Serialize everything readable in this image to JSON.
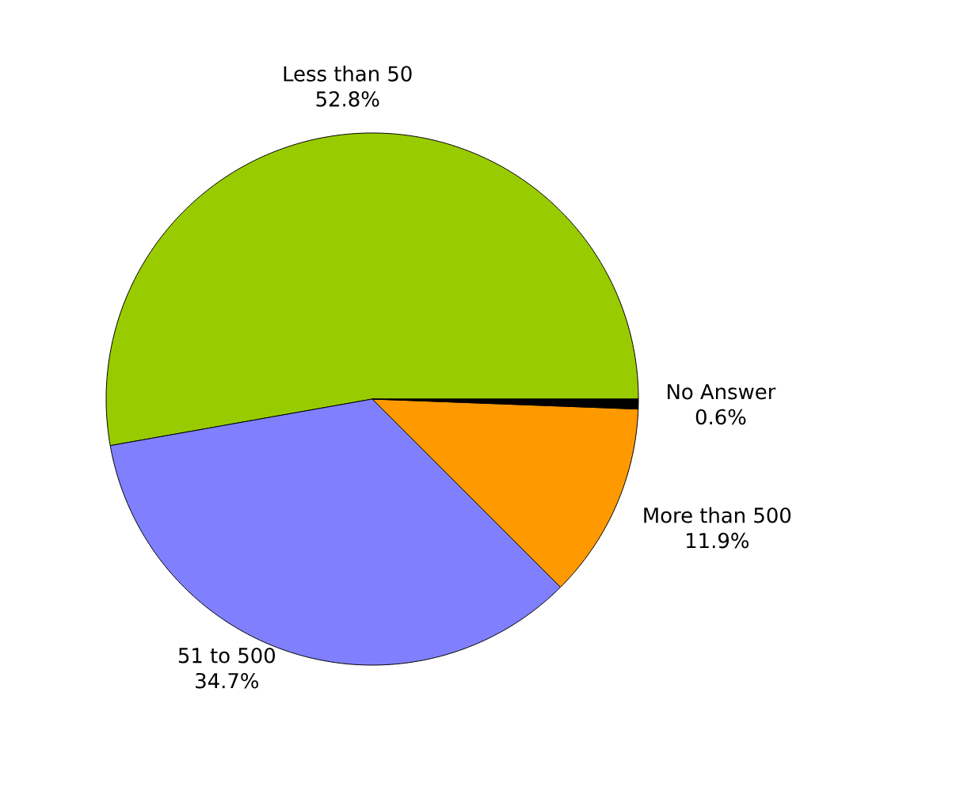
{
  "chart_data": {
    "type": "pie",
    "categories": [
      "Less than 50",
      "51 to 500",
      "More than 500",
      "No Answer"
    ],
    "values": [
      52.8,
      34.7,
      11.9,
      0.6
    ],
    "colors": [
      "#99cc00",
      "#8080ff",
      "#ff9900",
      "#000000"
    ],
    "value_labels": [
      "52.8%",
      "34.7%",
      "11.9%",
      "0.6%"
    ]
  }
}
